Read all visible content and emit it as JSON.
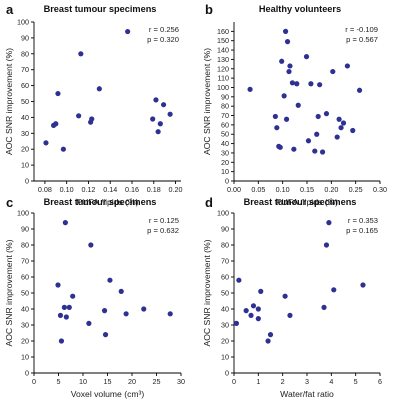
{
  "colors": {
    "point": "#2e3192"
  },
  "chart_data": [
    {
      "type": "scatter",
      "letter": "a",
      "title": "Breast tumour specimens",
      "xlabel": "PUFA /lipids (%)",
      "ylabel": "AOC SNR improvement (%)",
      "xlim": [
        0.07,
        0.205
      ],
      "ylim": [
        0,
        100
      ],
      "xticks": [
        "0.08",
        "0.10",
        "0.12",
        "0.14",
        "0.16",
        "0.18",
        "0.20"
      ],
      "xtick_values": [
        0.08,
        0.1,
        0.12,
        0.14,
        0.16,
        0.18,
        0.2
      ],
      "yticks": [
        "0",
        "10",
        "20",
        "30",
        "40",
        "50",
        "60",
        "70",
        "80",
        "90",
        "100"
      ],
      "ytick_values": [
        0,
        10,
        20,
        30,
        40,
        50,
        60,
        70,
        80,
        90,
        100
      ],
      "stats": [
        "r = 0.256",
        "p = 0.320"
      ],
      "points": [
        {
          "x": 0.081,
          "y": 24
        },
        {
          "x": 0.088,
          "y": 35
        },
        {
          "x": 0.09,
          "y": 36
        },
        {
          "x": 0.092,
          "y": 55
        },
        {
          "x": 0.097,
          "y": 20
        },
        {
          "x": 0.111,
          "y": 41
        },
        {
          "x": 0.113,
          "y": 80
        },
        {
          "x": 0.122,
          "y": 37
        },
        {
          "x": 0.123,
          "y": 39
        },
        {
          "x": 0.13,
          "y": 58
        },
        {
          "x": 0.156,
          "y": 94
        },
        {
          "x": 0.179,
          "y": 39
        },
        {
          "x": 0.182,
          "y": 51
        },
        {
          "x": 0.184,
          "y": 31
        },
        {
          "x": 0.186,
          "y": 36
        },
        {
          "x": 0.189,
          "y": 48
        },
        {
          "x": 0.195,
          "y": 42
        }
      ]
    },
    {
      "type": "scatter",
      "letter": "b",
      "title": "Healthy volunteers",
      "xlabel": "PUFA /lipids (%)",
      "ylabel": "AOC SNR improvement (%)",
      "xlim": [
        0,
        0.3
      ],
      "ylim": [
        0,
        170
      ],
      "xticks": [
        "0.00",
        "0.05",
        "0.10",
        "0.15",
        "0.20",
        "0.25",
        "0.30"
      ],
      "xtick_values": [
        0,
        0.05,
        0.1,
        0.15,
        0.2,
        0.25,
        0.3
      ],
      "yticks": [
        "0",
        "10",
        "20",
        "30",
        "40",
        "50",
        "60",
        "70",
        "80",
        "90",
        "100",
        "110",
        "120",
        "130",
        "140",
        "150",
        "160"
      ],
      "ytick_values": [
        0,
        10,
        20,
        30,
        40,
        50,
        60,
        70,
        80,
        90,
        100,
        110,
        120,
        130,
        140,
        150,
        160
      ],
      "stats": [
        "r = -0.109",
        "p = 0.567"
      ],
      "points": [
        {
          "x": 0.033,
          "y": 98
        },
        {
          "x": 0.085,
          "y": 69
        },
        {
          "x": 0.088,
          "y": 57
        },
        {
          "x": 0.092,
          "y": 37
        },
        {
          "x": 0.095,
          "y": 36
        },
        {
          "x": 0.098,
          "y": 128
        },
        {
          "x": 0.103,
          "y": 91
        },
        {
          "x": 0.106,
          "y": 160
        },
        {
          "x": 0.108,
          "y": 66
        },
        {
          "x": 0.11,
          "y": 149
        },
        {
          "x": 0.113,
          "y": 117
        },
        {
          "x": 0.115,
          "y": 123
        },
        {
          "x": 0.12,
          "y": 105
        },
        {
          "x": 0.123,
          "y": 34
        },
        {
          "x": 0.129,
          "y": 104
        },
        {
          "x": 0.132,
          "y": 81
        },
        {
          "x": 0.149,
          "y": 133
        },
        {
          "x": 0.153,
          "y": 43
        },
        {
          "x": 0.158,
          "y": 104
        },
        {
          "x": 0.166,
          "y": 32
        },
        {
          "x": 0.17,
          "y": 50
        },
        {
          "x": 0.173,
          "y": 69
        },
        {
          "x": 0.176,
          "y": 103
        },
        {
          "x": 0.182,
          "y": 31
        },
        {
          "x": 0.19,
          "y": 72
        },
        {
          "x": 0.203,
          "y": 117
        },
        {
          "x": 0.212,
          "y": 47
        },
        {
          "x": 0.216,
          "y": 66
        },
        {
          "x": 0.22,
          "y": 57
        },
        {
          "x": 0.225,
          "y": 62
        },
        {
          "x": 0.233,
          "y": 123
        },
        {
          "x": 0.244,
          "y": 54
        },
        {
          "x": 0.258,
          "y": 97
        }
      ]
    },
    {
      "type": "scatter",
      "letter": "c",
      "title": "Breast tumour specimens",
      "xlabel": "Voxel volume (cm³)",
      "ylabel": "AOC SNR improvement (%)",
      "xlim": [
        0,
        30
      ],
      "ylim": [
        0,
        100
      ],
      "xticks": [
        "0",
        "5",
        "10",
        "15",
        "20",
        "25",
        "30"
      ],
      "xtick_values": [
        0,
        5,
        10,
        15,
        20,
        25,
        30
      ],
      "yticks": [
        "0",
        "10",
        "20",
        "30",
        "40",
        "50",
        "60",
        "70",
        "80",
        "90",
        "100"
      ],
      "ytick_values": [
        0,
        10,
        20,
        30,
        40,
        50,
        60,
        70,
        80,
        90,
        100
      ],
      "stats": [
        "r = 0.125",
        "p = 0.632"
      ],
      "points": [
        {
          "x": 4.9,
          "y": 55
        },
        {
          "x": 5.4,
          "y": 36
        },
        {
          "x": 5.6,
          "y": 20
        },
        {
          "x": 6.2,
          "y": 41
        },
        {
          "x": 6.4,
          "y": 94
        },
        {
          "x": 6.6,
          "y": 35
        },
        {
          "x": 7.2,
          "y": 41
        },
        {
          "x": 7.9,
          "y": 48
        },
        {
          "x": 11.2,
          "y": 31
        },
        {
          "x": 11.6,
          "y": 80
        },
        {
          "x": 14.4,
          "y": 39
        },
        {
          "x": 14.6,
          "y": 24
        },
        {
          "x": 15.5,
          "y": 58
        },
        {
          "x": 17.8,
          "y": 51
        },
        {
          "x": 18.8,
          "y": 37
        },
        {
          "x": 22.4,
          "y": 40
        },
        {
          "x": 27.8,
          "y": 37
        }
      ]
    },
    {
      "type": "scatter",
      "letter": "d",
      "title": "Breast tumour specimens",
      "xlabel": "Water/fat ratio",
      "ylabel": "AOC SNR improvement (%)",
      "xlim": [
        0,
        6
      ],
      "ylim": [
        0,
        100
      ],
      "xticks": [
        "0",
        "1",
        "2",
        "3",
        "4",
        "5",
        "6"
      ],
      "xtick_values": [
        0,
        1,
        2,
        3,
        4,
        5,
        6
      ],
      "yticks": [
        "0",
        "10",
        "20",
        "30",
        "40",
        "50",
        "60",
        "70",
        "80",
        "90",
        "100"
      ],
      "ytick_values": [
        0,
        10,
        20,
        30,
        40,
        50,
        60,
        70,
        80,
        90,
        100
      ],
      "stats": [
        "r = 0.353",
        "p = 0.165"
      ],
      "points": [
        {
          "x": 0.1,
          "y": 31
        },
        {
          "x": 0.2,
          "y": 58
        },
        {
          "x": 0.5,
          "y": 39
        },
        {
          "x": 0.7,
          "y": 36
        },
        {
          "x": 0.8,
          "y": 42
        },
        {
          "x": 1.0,
          "y": 40
        },
        {
          "x": 1.0,
          "y": 34
        },
        {
          "x": 1.1,
          "y": 51
        },
        {
          "x": 1.4,
          "y": 20
        },
        {
          "x": 1.5,
          "y": 24
        },
        {
          "x": 2.1,
          "y": 48
        },
        {
          "x": 2.3,
          "y": 36
        },
        {
          "x": 3.7,
          "y": 41
        },
        {
          "x": 3.8,
          "y": 80
        },
        {
          "x": 3.9,
          "y": 94
        },
        {
          "x": 4.1,
          "y": 52
        },
        {
          "x": 5.3,
          "y": 55
        }
      ]
    }
  ]
}
